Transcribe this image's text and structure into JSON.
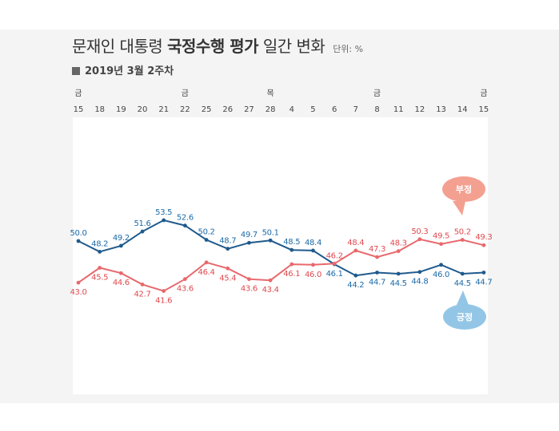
{
  "header": {
    "title_prefix": "문재인 대통령 ",
    "title_bold": "국정수행 평가",
    "title_suffix": " 일간 변화",
    "unit": "단위: %",
    "subtitle": "2019년 3월 2주차"
  },
  "colors": {
    "positive": "#1f5a8c",
    "positive_label": "#1c6aa8",
    "negative": "#e8686c",
    "negative_label": "#e04a4f",
    "positive_bubble": "#93c6e6",
    "negative_bubble": "#f4a091"
  },
  "chart_data": {
    "type": "line",
    "title": "문재인 대통령 국정수행 평가 일간 변화",
    "subtitle": "2019년 3월 2주차",
    "unit": "단위: %",
    "x": [
      "15",
      "18",
      "19",
      "20",
      "21",
      "22",
      "25",
      "26",
      "27",
      "28",
      "4",
      "5",
      "6",
      "7",
      "8",
      "11",
      "12",
      "13",
      "14",
      "15"
    ],
    "day_labels": [
      "금",
      "",
      "",
      "",
      "",
      "금",
      "",
      "",
      "",
      "목",
      "",
      "",
      "",
      "",
      "금",
      "",
      "",
      "",
      "",
      "금"
    ],
    "series": [
      {
        "name": "긍정",
        "values": [
          50.0,
          48.2,
          49.2,
          51.6,
          53.5,
          52.6,
          50.2,
          48.7,
          49.7,
          50.1,
          48.5,
          48.4,
          46.1,
          44.2,
          44.7,
          44.5,
          44.8,
          46.0,
          44.5,
          44.7
        ],
        "labels": [
          "50.0",
          "48.2",
          "49.2",
          "51.6",
          "53.5",
          "52.6",
          "50.2",
          "48.7",
          "49.7",
          "50.1",
          "48.5",
          "48.4",
          "46.1",
          "44.2",
          "44.7",
          "44.5",
          "44.8",
          "46.0",
          "44.5",
          "44.7"
        ]
      },
      {
        "name": "부정",
        "values": [
          43.0,
          45.5,
          44.6,
          42.7,
          41.6,
          43.6,
          46.4,
          45.4,
          43.6,
          43.4,
          46.1,
          46.0,
          46.2,
          48.4,
          47.3,
          48.3,
          50.3,
          49.5,
          50.2,
          49.3
        ],
        "labels": [
          "43.0",
          "45.5",
          "44.6",
          "42.7",
          "41.6",
          "43.6",
          "46.4",
          "45.4",
          "43.6",
          "43.4",
          "46.1",
          "46.0",
          "46.2",
          "48.4",
          "47.3",
          "48.3",
          "50.3",
          "49.5",
          "50.2",
          "49.3"
        ]
      }
    ],
    "legend": [
      "부정",
      "긍정"
    ],
    "grid": false
  }
}
